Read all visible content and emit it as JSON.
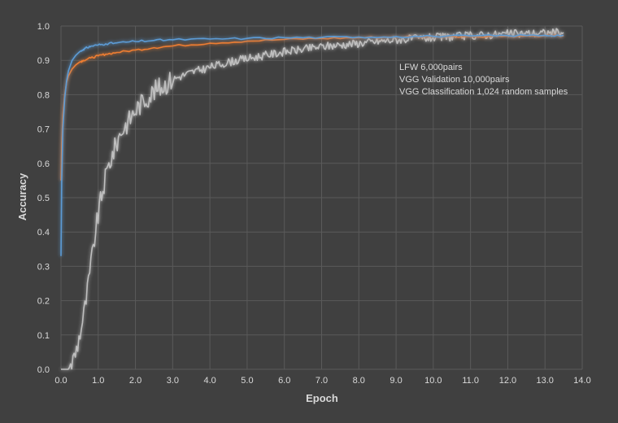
{
  "chart_data": {
    "type": "line",
    "title": "",
    "xlabel": "Epoch",
    "ylabel": "Accuracy",
    "xlim": [
      0,
      14
    ],
    "ylim": [
      0,
      1
    ],
    "x_ticks": [
      "0.0",
      "1.0",
      "2.0",
      "3.0",
      "4.0",
      "5.0",
      "6.0",
      "7.0",
      "8.0",
      "9.0",
      "10.0",
      "11.0",
      "12.0",
      "13.0",
      "14.0"
    ],
    "y_ticks": [
      "0.0",
      "0.1",
      "0.2",
      "0.3",
      "0.4",
      "0.5",
      "0.6",
      "0.7",
      "0.8",
      "0.9",
      "1.0"
    ],
    "grid": true,
    "legend_position": "top-right",
    "series": [
      {
        "name": "LFW 6,000pairs",
        "color": "#5b9bd5",
        "x": [
          0,
          0.02,
          0.05,
          0.1,
          0.15,
          0.2,
          0.3,
          0.4,
          0.5,
          0.6,
          0.7,
          0.8,
          1.0,
          1.2,
          1.5,
          2.0,
          2.5,
          3.0,
          4.0,
          5.0,
          6.0,
          7.0,
          8.0,
          9.0,
          10.0,
          11.0,
          12.0,
          13.0,
          13.5
        ],
        "y": [
          0.33,
          0.55,
          0.7,
          0.79,
          0.84,
          0.87,
          0.9,
          0.915,
          0.925,
          0.932,
          0.937,
          0.941,
          0.945,
          0.948,
          0.951,
          0.955,
          0.958,
          0.96,
          0.962,
          0.964,
          0.966,
          0.967,
          0.968,
          0.969,
          0.97,
          0.971,
          0.972,
          0.973,
          0.973
        ]
      },
      {
        "name": "VGG Validation 10,000pairs",
        "color": "#ed7d31",
        "x": [
          0,
          0.02,
          0.05,
          0.1,
          0.15,
          0.2,
          0.3,
          0.4,
          0.5,
          0.6,
          0.8,
          1.0,
          1.2,
          1.5,
          2.0,
          2.5,
          3.0,
          4.0,
          5.0,
          6.0,
          7.0,
          8.0,
          9.0,
          10.0,
          11.0,
          12.0,
          13.0,
          13.5
        ],
        "y": [
          0.55,
          0.65,
          0.74,
          0.8,
          0.835,
          0.855,
          0.875,
          0.887,
          0.895,
          0.9,
          0.907,
          0.913,
          0.918,
          0.923,
          0.93,
          0.937,
          0.942,
          0.95,
          0.956,
          0.961,
          0.964,
          0.966,
          0.968,
          0.969,
          0.97,
          0.971,
          0.972,
          0.972
        ]
      },
      {
        "name": "VGG Classification 1,024 random samples",
        "color": "#bfbfbf",
        "x": [
          0,
          0.1,
          0.2,
          0.3,
          0.4,
          0.5,
          0.6,
          0.7,
          0.8,
          0.9,
          1.0,
          1.1,
          1.2,
          1.3,
          1.4,
          1.5,
          1.6,
          1.8,
          2.0,
          2.2,
          2.5,
          2.8,
          3.0,
          3.5,
          4.0,
          4.5,
          5.0,
          5.5,
          6.0,
          6.5,
          7.0,
          7.5,
          8.0,
          8.5,
          9.0,
          9.5,
          10.0,
          11.0,
          12.0,
          13.0,
          13.5
        ],
        "y": [
          0.0,
          0.0,
          0.0,
          0.02,
          0.05,
          0.1,
          0.15,
          0.22,
          0.3,
          0.38,
          0.45,
          0.51,
          0.56,
          0.6,
          0.63,
          0.66,
          0.69,
          0.72,
          0.755,
          0.78,
          0.81,
          0.83,
          0.845,
          0.865,
          0.88,
          0.895,
          0.905,
          0.915,
          0.925,
          0.932,
          0.94,
          0.945,
          0.95,
          0.955,
          0.96,
          0.963,
          0.966,
          0.972,
          0.977,
          0.98,
          0.982
        ],
        "noise": 0.012
      }
    ]
  }
}
